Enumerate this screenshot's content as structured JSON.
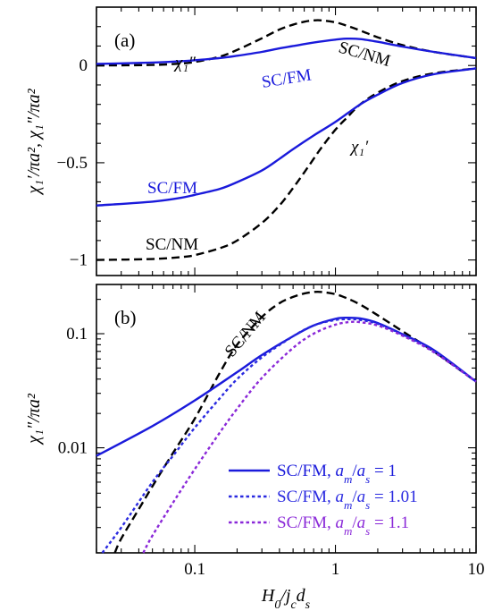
{
  "figure": {
    "xlabel": "H₀/j꜀dₛ",
    "xlabel_parts": [
      "H",
      "0",
      "/j",
      "c",
      "d",
      "s"
    ]
  },
  "chart_data": [
    {
      "panel": "(a)",
      "type": "line",
      "xscale": "log",
      "xlim": [
        0.02,
        10
      ],
      "ylim": [
        -1.08,
        0.3
      ],
      "yticks": [
        0,
        -0.5,
        -1
      ],
      "ytick_labels": [
        "0",
        "−0.5",
        "−1"
      ],
      "ylabel": "χ₁′/πa², χ₁″/πa²",
      "grid": false,
      "series": [
        {
          "name": "SC/NM χ₁″",
          "color": "#000000",
          "dash": "dashed",
          "x": [
            0.02,
            0.05,
            0.08,
            0.1,
            0.15,
            0.2,
            0.3,
            0.4,
            0.5,
            0.6,
            0.7,
            0.8,
            1.0,
            1.2,
            1.5,
            2,
            3,
            5,
            10
          ],
          "y": [
            0.0,
            0.003,
            0.01,
            0.018,
            0.045,
            0.08,
            0.14,
            0.185,
            0.21,
            0.225,
            0.232,
            0.232,
            0.222,
            0.205,
            0.18,
            0.145,
            0.105,
            0.07,
            0.038
          ]
        },
        {
          "name": "SC/FM χ₁″",
          "color": "#1a1adb",
          "dash": "solid",
          "x": [
            0.02,
            0.05,
            0.08,
            0.1,
            0.15,
            0.2,
            0.3,
            0.4,
            0.5,
            0.7,
            1.0,
            1.2,
            1.5,
            2,
            3,
            5,
            10
          ],
          "y": [
            0.008,
            0.015,
            0.022,
            0.027,
            0.038,
            0.05,
            0.07,
            0.088,
            0.1,
            0.118,
            0.133,
            0.138,
            0.136,
            0.122,
            0.097,
            0.07,
            0.038
          ]
        },
        {
          "name": "SC/NM χ₁′",
          "color": "#000000",
          "dash": "dashed",
          "x": [
            0.02,
            0.05,
            0.08,
            0.1,
            0.15,
            0.2,
            0.3,
            0.4,
            0.5,
            0.6,
            0.7,
            0.8,
            1.0,
            1.2,
            1.5,
            2,
            3,
            5,
            10
          ],
          "y": [
            -1.0,
            -0.995,
            -0.985,
            -0.975,
            -0.94,
            -0.9,
            -0.81,
            -0.72,
            -0.63,
            -0.55,
            -0.48,
            -0.42,
            -0.33,
            -0.27,
            -0.2,
            -0.14,
            -0.08,
            -0.04,
            -0.015
          ]
        },
        {
          "name": "SC/FM χ₁′",
          "color": "#1a1adb",
          "dash": "solid",
          "x": [
            0.02,
            0.05,
            0.08,
            0.1,
            0.15,
            0.2,
            0.3,
            0.4,
            0.5,
            0.7,
            1.0,
            1.5,
            2,
            3,
            5,
            10
          ],
          "y": [
            -0.72,
            -0.7,
            -0.68,
            -0.665,
            -0.635,
            -0.6,
            -0.54,
            -0.48,
            -0.43,
            -0.36,
            -0.29,
            -0.2,
            -0.15,
            -0.09,
            -0.045,
            -0.015
          ]
        }
      ],
      "annotations": {
        "label": "(a)",
        "sc_nm_top": "SC/NM",
        "chi2": "χ₁″",
        "sc_fm_top": "SC/FM",
        "chi1": "χ₁′",
        "sc_fm_bottom": "SC/FM",
        "sc_nm_bottom": "SC/NM"
      }
    },
    {
      "panel": "(b)",
      "type": "line",
      "xscale": "log",
      "yscale": "log",
      "xlim": [
        0.02,
        10
      ],
      "ylim": [
        0.0012,
        0.27
      ],
      "xticks": [
        0.1,
        1,
        10
      ],
      "xtick_labels": [
        "0.1",
        "1",
        "10"
      ],
      "yticks": [
        0.01,
        0.1
      ],
      "ytick_labels": [
        "0.01",
        "0.1"
      ],
      "ylabel": "χ₁″/πa²",
      "grid": false,
      "legend_position": "bottom-right",
      "series": [
        {
          "name": "SC/NM",
          "color": "#000000",
          "dash": "dashed",
          "x": [
            0.027,
            0.03,
            0.04,
            0.05,
            0.07,
            0.1,
            0.15,
            0.2,
            0.3,
            0.4,
            0.5,
            0.6,
            0.7,
            0.8,
            1.0,
            1.2,
            1.5,
            2,
            3,
            5,
            10
          ],
          "y": [
            0.0012,
            0.0016,
            0.0029,
            0.0046,
            0.009,
            0.018,
            0.045,
            0.08,
            0.14,
            0.185,
            0.21,
            0.225,
            0.232,
            0.232,
            0.222,
            0.205,
            0.18,
            0.145,
            0.105,
            0.07,
            0.038
          ]
        },
        {
          "name": "SC/FM, a_m/a_s = 1",
          "color": "#1a1adb",
          "dash": "solid",
          "x": [
            0.02,
            0.05,
            0.1,
            0.2,
            0.3,
            0.5,
            0.7,
            1.0,
            1.2,
            1.5,
            2,
            3,
            5,
            10
          ],
          "y": [
            0.0085,
            0.0155,
            0.026,
            0.046,
            0.065,
            0.095,
            0.118,
            0.135,
            0.138,
            0.136,
            0.124,
            0.099,
            0.072,
            0.038
          ]
        },
        {
          "name": "SC/FM, a_m/a_s = 1.01",
          "color": "#2a2ae0",
          "dash": "dotted",
          "x": [
            0.022,
            0.03,
            0.05,
            0.07,
            0.1,
            0.15,
            0.2,
            0.3,
            0.5,
            0.7,
            1.0,
            1.3,
            1.5,
            2,
            3,
            5,
            10
          ],
          "y": [
            0.0012,
            0.002,
            0.005,
            0.0085,
            0.015,
            0.027,
            0.04,
            0.062,
            0.095,
            0.118,
            0.132,
            0.134,
            0.132,
            0.122,
            0.098,
            0.07,
            0.038
          ]
        },
        {
          "name": "SC/FM, a_m/a_s = 1.1",
          "color": "#8a28d8",
          "dash": "dotted",
          "x": [
            0.043,
            0.05,
            0.07,
            0.1,
            0.15,
            0.2,
            0.3,
            0.5,
            0.7,
            1.0,
            1.3,
            1.5,
            2,
            3,
            5,
            10
          ],
          "y": [
            0.0012,
            0.0017,
            0.0033,
            0.0065,
            0.0135,
            0.022,
            0.041,
            0.075,
            0.1,
            0.12,
            0.127,
            0.126,
            0.118,
            0.096,
            0.069,
            0.038
          ]
        }
      ],
      "annotations": {
        "label": "(b)",
        "sc_nm": "SC/NM"
      },
      "legend": [
        {
          "prefix": "SC/FM, ",
          "ratio": "a_m/a_s",
          "value": " = 1"
        },
        {
          "prefix": "SC/FM, ",
          "ratio": "a_m/a_s",
          "value": " = 1.01"
        },
        {
          "prefix": "SC/FM, ",
          "ratio": "a_m/a_s",
          "value": " = 1.1"
        }
      ]
    }
  ]
}
